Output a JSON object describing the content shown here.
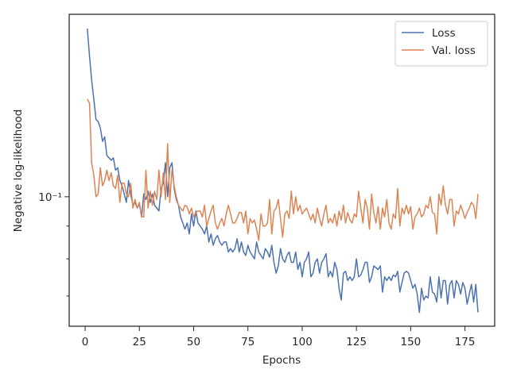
{
  "chart_data": {
    "type": "line",
    "xlabel": "Epochs",
    "ylabel": "Negative log-likelihood",
    "log_y": true,
    "grid": false,
    "legend": "upper right",
    "xlim": [
      -7.35,
      188.7
    ],
    "xticks": [
      0,
      25,
      50,
      75,
      100,
      125,
      150,
      175
    ],
    "ylim": [
      0.0628,
      0.1926
    ],
    "yticks": [
      {
        "value": 0.1,
        "label": "10⁻¹"
      }
    ],
    "yminor_ticks": [
      0.07,
      0.08,
      0.09
    ],
    "x": [
      1,
      2,
      3,
      4,
      5,
      6,
      7,
      8,
      9,
      10,
      11,
      12,
      13,
      14,
      15,
      16,
      17,
      18,
      19,
      20,
      21,
      22,
      23,
      24,
      25,
      26,
      27,
      28,
      29,
      30,
      31,
      32,
      33,
      34,
      35,
      36,
      37,
      38,
      39,
      40,
      41,
      42,
      43,
      44,
      45,
      46,
      47,
      48,
      49,
      50,
      51,
      52,
      53,
      54,
      55,
      56,
      57,
      58,
      59,
      60,
      61,
      62,
      63,
      64,
      65,
      66,
      67,
      68,
      69,
      70,
      71,
      72,
      73,
      74,
      75,
      76,
      77,
      78,
      79,
      80,
      81,
      82,
      83,
      84,
      85,
      86,
      87,
      88,
      89,
      90,
      91,
      92,
      93,
      94,
      95,
      96,
      97,
      98,
      99,
      100,
      101,
      102,
      103,
      104,
      105,
      106,
      107,
      108,
      109,
      110,
      111,
      112,
      113,
      114,
      115,
      116,
      117,
      118,
      119,
      120,
      121,
      122,
      123,
      124,
      125,
      126,
      127,
      128,
      129,
      130,
      131,
      132,
      133,
      134,
      135,
      136,
      137,
      138,
      139,
      140,
      141,
      142,
      143,
      144,
      145,
      146,
      147,
      148,
      149,
      150,
      151,
      152,
      153,
      154,
      155,
      156,
      157,
      158,
      159,
      160,
      161,
      162,
      163,
      164,
      165,
      166,
      167,
      168,
      169,
      170,
      171,
      172,
      173,
      174,
      175,
      176,
      177,
      178,
      179,
      180,
      181
    ],
    "series": [
      {
        "name": "Loss",
        "color": "#4c72b0",
        "values": [
          0.183,
          0.166,
          0.152,
          0.142,
          0.132,
          0.131,
          0.128,
          0.122,
          0.124,
          0.116,
          0.115,
          0.114,
          0.115,
          0.11,
          0.111,
          0.106,
          0.104,
          0.101,
          0.098,
          0.106,
          0.101,
          0.097,
          0.098,
          0.096,
          0.0975,
          0.093,
          0.101,
          0.099,
          0.102,
          0.098,
          0.101,
          0.097,
          0.096,
          0.095,
          0.103,
          0.105,
          0.113,
          0.1,
          0.111,
          0.113,
          0.103,
          0.099,
          0.097,
          0.093,
          0.091,
          0.089,
          0.091,
          0.0875,
          0.094,
          0.09,
          0.095,
          0.091,
          0.09,
          0.089,
          0.0875,
          0.09,
          0.085,
          0.0875,
          0.084,
          0.086,
          0.087,
          0.085,
          0.084,
          0.085,
          0.085,
          0.082,
          0.083,
          0.082,
          0.083,
          0.086,
          0.082,
          0.085,
          0.082,
          0.081,
          0.084,
          0.082,
          0.081,
          0.08,
          0.085,
          0.082,
          0.081,
          0.08,
          0.083,
          0.082,
          0.0805,
          0.084,
          0.079,
          0.076,
          0.078,
          0.083,
          0.08,
          0.079,
          0.081,
          0.082,
          0.079,
          0.079,
          0.082,
          0.077,
          0.079,
          0.075,
          0.079,
          0.08,
          0.082,
          0.075,
          0.076,
          0.079,
          0.08,
          0.076,
          0.079,
          0.08,
          0.0815,
          0.075,
          0.0765,
          0.075,
          0.079,
          0.077,
          0.072,
          0.069,
          0.076,
          0.0765,
          0.074,
          0.075,
          0.074,
          0.075,
          0.08,
          0.075,
          0.0755,
          0.077,
          0.079,
          0.079,
          0.0735,
          0.075,
          0.078,
          0.0775,
          0.077,
          0.078,
          0.071,
          0.075,
          0.074,
          0.075,
          0.074,
          0.0755,
          0.075,
          0.0765,
          0.071,
          0.0735,
          0.076,
          0.0765,
          0.076,
          0.074,
          0.072,
          0.073,
          0.0705,
          0.066,
          0.072,
          0.069,
          0.07,
          0.0695,
          0.075,
          0.071,
          0.0705,
          0.0685,
          0.075,
          0.0695,
          0.074,
          0.074,
          0.068,
          0.073,
          0.074,
          0.0695,
          0.074,
          0.073,
          0.0705,
          0.0735,
          0.072,
          0.068,
          0.0705,
          0.073,
          0.0685,
          0.073,
          0.066
        ]
      },
      {
        "name": "Val. loss",
        "color": "#dd8452",
        "values": [
          0.142,
          0.14,
          0.113,
          0.108,
          0.1,
          0.101,
          0.111,
          0.104,
          0.106,
          0.11,
          0.106,
          0.109,
          0.104,
          0.103,
          0.108,
          0.098,
          0.105,
          0.105,
          0.101,
          0.1,
          0.105,
          0.096,
          0.099,
          0.096,
          0.098,
          0.093,
          0.093,
          0.11,
          0.096,
          0.102,
          0.097,
          0.102,
          0.099,
          0.11,
          0.1,
          0.109,
          0.099,
          0.121,
          0.098,
          0.11,
          0.104,
          0.1,
          0.097,
          0.096,
          0.095,
          0.097,
          0.0965,
          0.094,
          0.096,
          0.093,
          0.0945,
          0.095,
          0.095,
          0.093,
          0.097,
          0.09,
          0.0925,
          0.095,
          0.097,
          0.091,
          0.089,
          0.091,
          0.0925,
          0.09,
          0.094,
          0.097,
          0.094,
          0.091,
          0.091,
          0.0925,
          0.0945,
          0.0945,
          0.091,
          0.095,
          0.0875,
          0.0925,
          0.091,
          0.092,
          0.089,
          0.0855,
          0.094,
          0.09,
          0.09,
          0.091,
          0.099,
          0.0875,
          0.095,
          0.096,
          0.099,
          0.0925,
          0.0865,
          0.094,
          0.095,
          0.0925,
          0.102,
          0.094,
          0.1,
          0.095,
          0.097,
          0.094,
          0.095,
          0.096,
          0.094,
          0.092,
          0.094,
          0.091,
          0.096,
          0.0925,
          0.09,
          0.094,
          0.097,
          0.091,
          0.0925,
          0.091,
          0.094,
          0.09,
          0.095,
          0.092,
          0.097,
          0.091,
          0.0945,
          0.092,
          0.091,
          0.094,
          0.093,
          0.102,
          0.096,
          0.091,
          0.099,
          0.096,
          0.089,
          0.101,
          0.0945,
          0.091,
          0.0965,
          0.089,
          0.096,
          0.093,
          0.099,
          0.091,
          0.089,
          0.094,
          0.0925,
          0.103,
          0.09,
          0.096,
          0.094,
          0.097,
          0.094,
          0.0965,
          0.089,
          0.093,
          0.094,
          0.096,
          0.093,
          0.094,
          0.097,
          0.096,
          0.1,
          0.0945,
          0.094,
          0.0875,
          0.101,
          0.097,
          0.104,
          0.097,
          0.094,
          0.099,
          0.099,
          0.09,
          0.095,
          0.094,
          0.097,
          0.095,
          0.0925,
          0.0945,
          0.096,
          0.098,
          0.097,
          0.0925,
          0.101
        ]
      }
    ]
  }
}
